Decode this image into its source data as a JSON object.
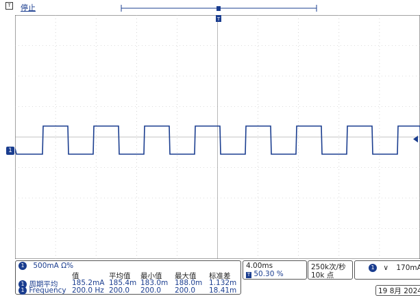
{
  "status": {
    "label": "停止"
  },
  "channel_marker": "1",
  "channel_box": {
    "badge": "1",
    "scale": "500mA Ω%"
  },
  "measure": {
    "headers": [
      "值",
      "平均值",
      "最小值",
      "最大值",
      "标准差"
    ],
    "rows": [
      {
        "badge": "1",
        "name": "周期平均",
        "values": [
          "185.2mA",
          "185.4m",
          "183.0m",
          "188.0m",
          "1.132m"
        ]
      },
      {
        "badge": "1",
        "name": "Frequency",
        "values": [
          "200.0 Hz",
          "200.0",
          "200.0",
          "200.0",
          "18.41m"
        ]
      }
    ]
  },
  "timebase": {
    "scale": "4.00ms",
    "position": "50.30 %",
    "pos_icon": "T"
  },
  "acquisition": {
    "rate": "250k次/秒",
    "length": "10k 点"
  },
  "trigger": {
    "badge": "1",
    "slope_icon": "rising-edge-icon",
    "level": "170mA"
  },
  "date": "19 8月 2024",
  "colors": {
    "trace": "#1a3d8f",
    "grid": "#b8b8b8",
    "accent": "#1a3d8f"
  }
}
